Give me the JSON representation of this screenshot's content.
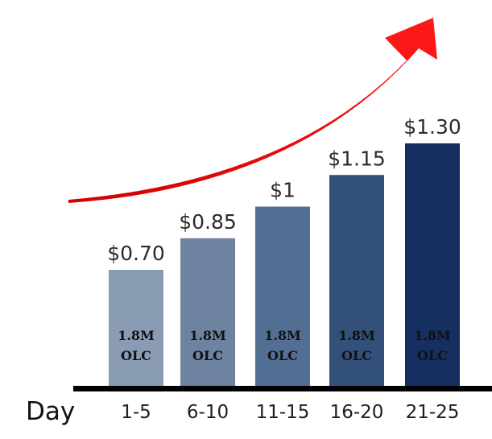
{
  "chart_data": {
    "type": "bar",
    "xlabel": "Day",
    "categories": [
      "1-5",
      "6-10",
      "11-15",
      "16-20",
      "21-25"
    ],
    "values": [
      0.7,
      0.85,
      1.0,
      1.15,
      1.3
    ],
    "value_labels": [
      "$0.70",
      "$0.85",
      "$1",
      "$1.15",
      "$1.30"
    ],
    "bar_text": [
      [
        "1.8M",
        "OLC"
      ],
      [
        "1.8M",
        "OLC"
      ],
      [
        "1.8M",
        "OLC"
      ],
      [
        "1.8M",
        "OLC"
      ],
      [
        "1.8M",
        "OLC"
      ]
    ],
    "bar_colors": [
      "#8a9cb3",
      "#6d83a0",
      "#526f93",
      "#33507a",
      "#142f60"
    ],
    "trend_arrow": {
      "direction": "up-right",
      "color": "#ff0000"
    },
    "baseline_color": "#000000",
    "ylim": [
      0,
      1.3
    ],
    "grid": false,
    "legend": "none"
  }
}
